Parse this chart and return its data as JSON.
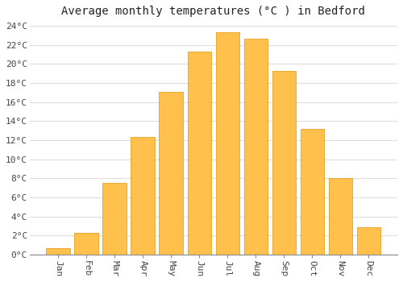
{
  "months": [
    "Jan",
    "Feb",
    "Mar",
    "Apr",
    "May",
    "Jun",
    "Jul",
    "Aug",
    "Sep",
    "Oct",
    "Nov",
    "Dec"
  ],
  "values": [
    0.7,
    2.3,
    7.5,
    12.3,
    17.1,
    21.3,
    23.3,
    22.7,
    19.3,
    13.2,
    8.0,
    2.9
  ],
  "bar_color": "#FFC04C",
  "bar_edge_color": "#E8A020",
  "title": "Average monthly temperatures (°C ) in Bedford",
  "ylim": [
    0,
    24.5
  ],
  "yticks": [
    0,
    2,
    4,
    6,
    8,
    10,
    12,
    14,
    16,
    18,
    20,
    22,
    24
  ],
  "ytick_labels": [
    "0°C",
    "2°C",
    "4°C",
    "6°C",
    "8°C",
    "10°C",
    "12°C",
    "14°C",
    "16°C",
    "18°C",
    "20°C",
    "22°C",
    "24°C"
  ],
  "bg_color": "#ffffff",
  "plot_bg_color": "#ffffff",
  "grid_color": "#dddddd",
  "title_fontsize": 10,
  "tick_fontsize": 8,
  "bar_width": 0.85
}
